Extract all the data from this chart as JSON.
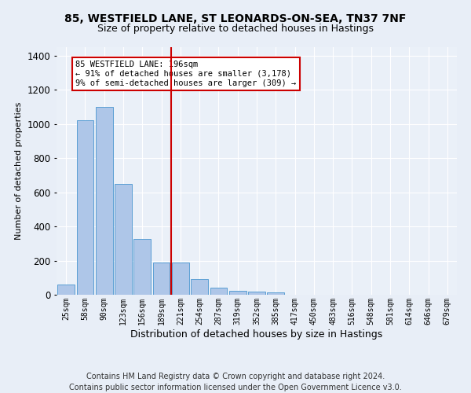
{
  "title_line1": "85, WESTFIELD LANE, ST LEONARDS-ON-SEA, TN37 7NF",
  "title_line2": "Size of property relative to detached houses in Hastings",
  "xlabel": "Distribution of detached houses by size in Hastings",
  "ylabel": "Number of detached properties",
  "bar_labels": [
    "25sqm",
    "58sqm",
    "90sqm",
    "123sqm",
    "156sqm",
    "189sqm",
    "221sqm",
    "254sqm",
    "287sqm",
    "319sqm",
    "352sqm",
    "385sqm",
    "417sqm",
    "450sqm",
    "483sqm",
    "516sqm",
    "548sqm",
    "581sqm",
    "614sqm",
    "646sqm",
    "679sqm"
  ],
  "bar_values": [
    60,
    1020,
    1100,
    650,
    325,
    190,
    190,
    90,
    40,
    25,
    20,
    15,
    0,
    0,
    0,
    0,
    0,
    0,
    0,
    0,
    0
  ],
  "bar_color": "#aec6e8",
  "bar_edge_color": "#5a9fd4",
  "vline_x": 5.5,
  "vline_color": "#cc0000",
  "annotation_text": "85 WESTFIELD LANE: 196sqm\n← 91% of detached houses are smaller (3,178)\n9% of semi-detached houses are larger (309) →",
  "annotation_box_color": "#ffffff",
  "annotation_box_edge": "#cc0000",
  "footnote": "Contains HM Land Registry data © Crown copyright and database right 2024.\nContains public sector information licensed under the Open Government Licence v3.0.",
  "ylim": [
    0,
    1450
  ],
  "bg_color": "#e8eef7",
  "plot_bg_color": "#eaf0f8",
  "grid_color": "#ffffff",
  "title_fontsize": 10,
  "subtitle_fontsize": 9,
  "footnote_fontsize": 7
}
